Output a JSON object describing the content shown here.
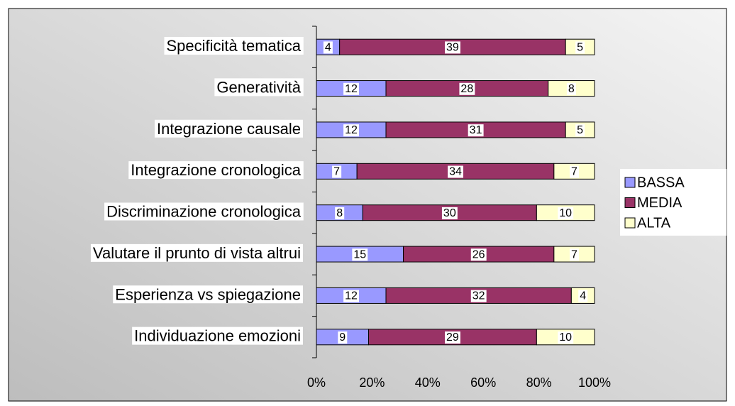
{
  "chart_data": {
    "type": "bar",
    "orientation": "horizontal",
    "stacked": "percent",
    "categories": [
      "Specificità tematica",
      "Generatività",
      "Integrazione causale",
      "Integrazione cronologica",
      "Discriminazione cronologica",
      "Valutare il prunto di vista altrui",
      "Esperienza vs spiegazione",
      "Individuazione emozioni"
    ],
    "series": [
      {
        "name": "BASSA",
        "color": "#9999ff",
        "values": [
          4,
          12,
          12,
          7,
          8,
          15,
          12,
          9
        ]
      },
      {
        "name": "MEDIA",
        "color": "#993366",
        "values": [
          39,
          28,
          31,
          34,
          30,
          26,
          32,
          29
        ]
      },
      {
        "name": "ALTA",
        "color": "#ffffcc",
        "values": [
          5,
          8,
          5,
          7,
          10,
          7,
          4,
          10
        ]
      }
    ],
    "xlim": [
      0,
      100
    ],
    "xticks": [
      {
        "value": 0,
        "label": "0%"
      },
      {
        "value": 20,
        "label": "20%"
      },
      {
        "value": 40,
        "label": "40%"
      },
      {
        "value": 60,
        "label": "60%"
      },
      {
        "value": 80,
        "label": "80%"
      },
      {
        "value": 100,
        "label": "100%"
      }
    ],
    "legend": "right"
  }
}
